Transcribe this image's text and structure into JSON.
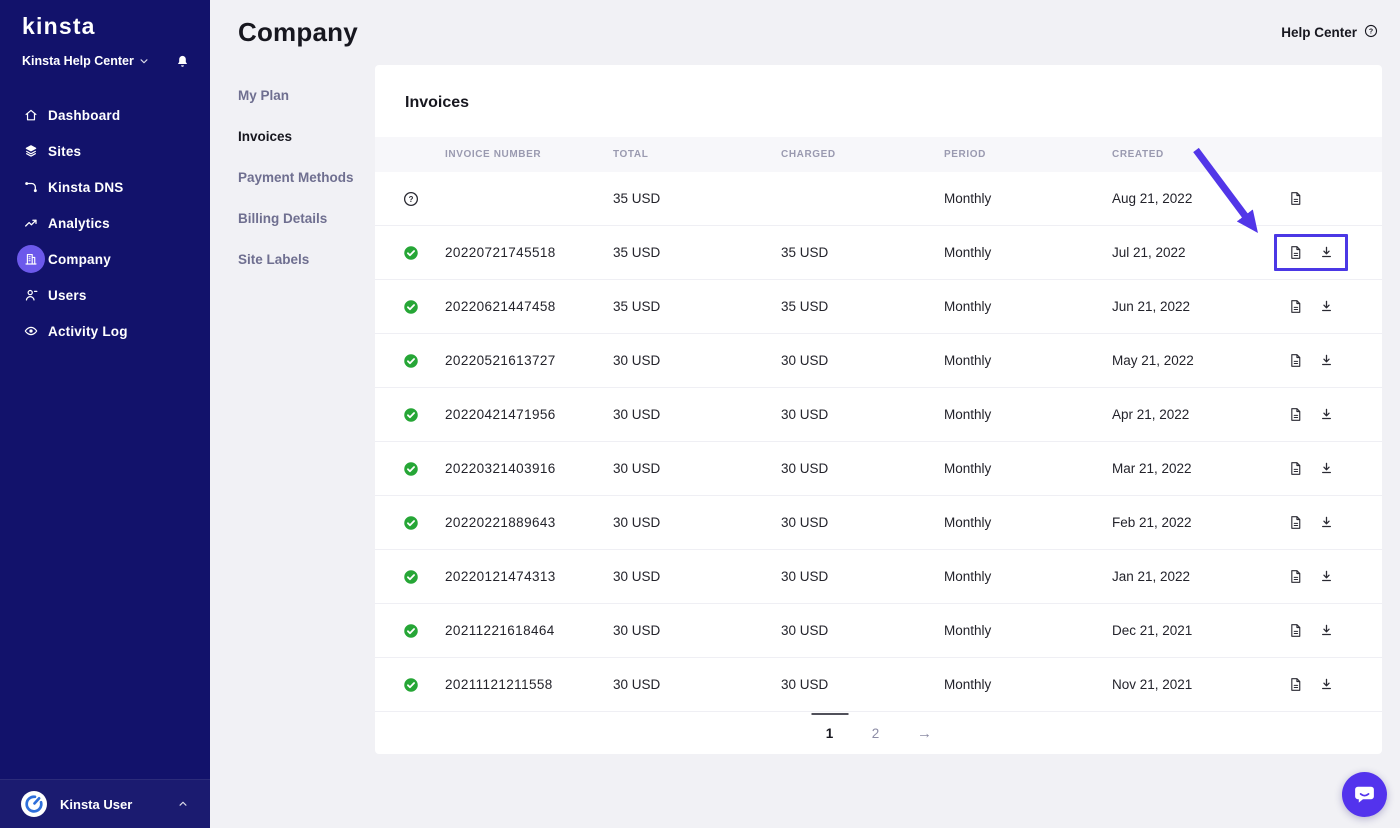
{
  "brand": {
    "logo_text": "kinsta",
    "workspace_name": "Kinsta Help Center"
  },
  "sidebar": {
    "items": [
      {
        "label": "Dashboard",
        "icon": "home",
        "active": false
      },
      {
        "label": "Sites",
        "icon": "layers",
        "active": false
      },
      {
        "label": "Kinsta DNS",
        "icon": "dns",
        "active": false
      },
      {
        "label": "Analytics",
        "icon": "trending-up",
        "active": false
      },
      {
        "label": "Company",
        "icon": "building",
        "active": true
      },
      {
        "label": "Users",
        "icon": "user",
        "active": false
      },
      {
        "label": "Activity Log",
        "icon": "eye",
        "active": false
      }
    ],
    "user_name": "Kinsta User"
  },
  "header": {
    "title": "Company",
    "help_label": "Help Center"
  },
  "subnav": [
    {
      "label": "My Plan",
      "active": false
    },
    {
      "label": "Invoices",
      "active": true
    },
    {
      "label": "Payment Methods",
      "active": false
    },
    {
      "label": "Billing Details",
      "active": false
    },
    {
      "label": "Site Labels",
      "active": false
    }
  ],
  "invoices": {
    "title": "Invoices",
    "columns": [
      "INVOICE NUMBER",
      "TOTAL",
      "CHARGED",
      "PERIOD",
      "CREATED"
    ],
    "rows": [
      {
        "status": "pending",
        "invoice_number": "",
        "total": "35 USD",
        "charged": "",
        "period": "Monthly",
        "created": "Aug 21, 2022",
        "has_download": false,
        "highlighted": false
      },
      {
        "status": "paid",
        "invoice_number": "20220721745518",
        "total": "35 USD",
        "charged": "35 USD",
        "period": "Monthly",
        "created": "Jul 21, 2022",
        "has_download": true,
        "highlighted": true
      },
      {
        "status": "paid",
        "invoice_number": "20220621447458",
        "total": "35 USD",
        "charged": "35 USD",
        "period": "Monthly",
        "created": "Jun 21, 2022",
        "has_download": true,
        "highlighted": false
      },
      {
        "status": "paid",
        "invoice_number": "20220521613727",
        "total": "30 USD",
        "charged": "30 USD",
        "period": "Monthly",
        "created": "May 21, 2022",
        "has_download": true,
        "highlighted": false
      },
      {
        "status": "paid",
        "invoice_number": "20220421471956",
        "total": "30 USD",
        "charged": "30 USD",
        "period": "Monthly",
        "created": "Apr 21, 2022",
        "has_download": true,
        "highlighted": false
      },
      {
        "status": "paid",
        "invoice_number": "20220321403916",
        "total": "30 USD",
        "charged": "30 USD",
        "period": "Monthly",
        "created": "Mar 21, 2022",
        "has_download": true,
        "highlighted": false
      },
      {
        "status": "paid",
        "invoice_number": "20220221889643",
        "total": "30 USD",
        "charged": "30 USD",
        "period": "Monthly",
        "created": "Feb 21, 2022",
        "has_download": true,
        "highlighted": false
      },
      {
        "status": "paid",
        "invoice_number": "20220121474313",
        "total": "30 USD",
        "charged": "30 USD",
        "period": "Monthly",
        "created": "Jan 21, 2022",
        "has_download": true,
        "highlighted": false
      },
      {
        "status": "paid",
        "invoice_number": "20211221618464",
        "total": "30 USD",
        "charged": "30 USD",
        "period": "Monthly",
        "created": "Dec 21, 2021",
        "has_download": true,
        "highlighted": false
      },
      {
        "status": "paid",
        "invoice_number": "20211121211558",
        "total": "30 USD",
        "charged": "30 USD",
        "period": "Monthly",
        "created": "Nov 21, 2021",
        "has_download": true,
        "highlighted": false
      }
    ],
    "pagination": {
      "pages": [
        "1",
        "2"
      ],
      "current": "1",
      "next_label": "→"
    }
  },
  "colors": {
    "sidebar_navy": "#12126B",
    "accent_purple": "#5333ED",
    "active_icon_circle": "#6C59EB",
    "success_green": "#26A636",
    "highlight_box": "#4B38E5",
    "annotation_arrow": "#5236E8"
  }
}
